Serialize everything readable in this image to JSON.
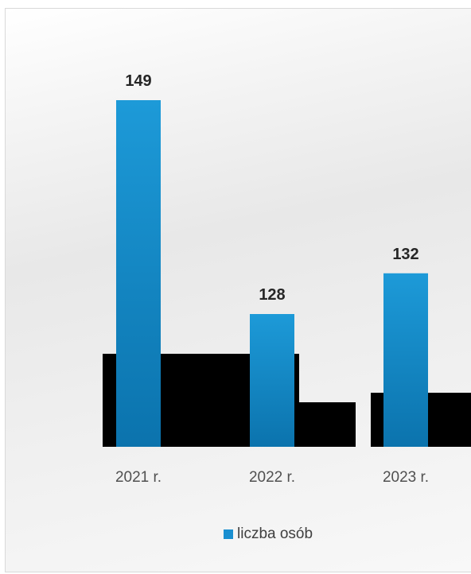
{
  "chart_data": {
    "type": "bar",
    "categories": [
      "2021 r.",
      "2022 r.",
      "2023 r."
    ],
    "series": [
      {
        "name": "liczba osób",
        "values": [
          149,
          128,
          132
        ],
        "color": "#1a8fd0"
      }
    ],
    "data_labels": [
      "149",
      "128",
      "132"
    ],
    "legend": {
      "position": "bottom",
      "label": "liczba osób"
    },
    "title": "",
    "xlabel": "",
    "ylabel": "",
    "ylim": [
      105,
      155
    ],
    "grid": false
  }
}
